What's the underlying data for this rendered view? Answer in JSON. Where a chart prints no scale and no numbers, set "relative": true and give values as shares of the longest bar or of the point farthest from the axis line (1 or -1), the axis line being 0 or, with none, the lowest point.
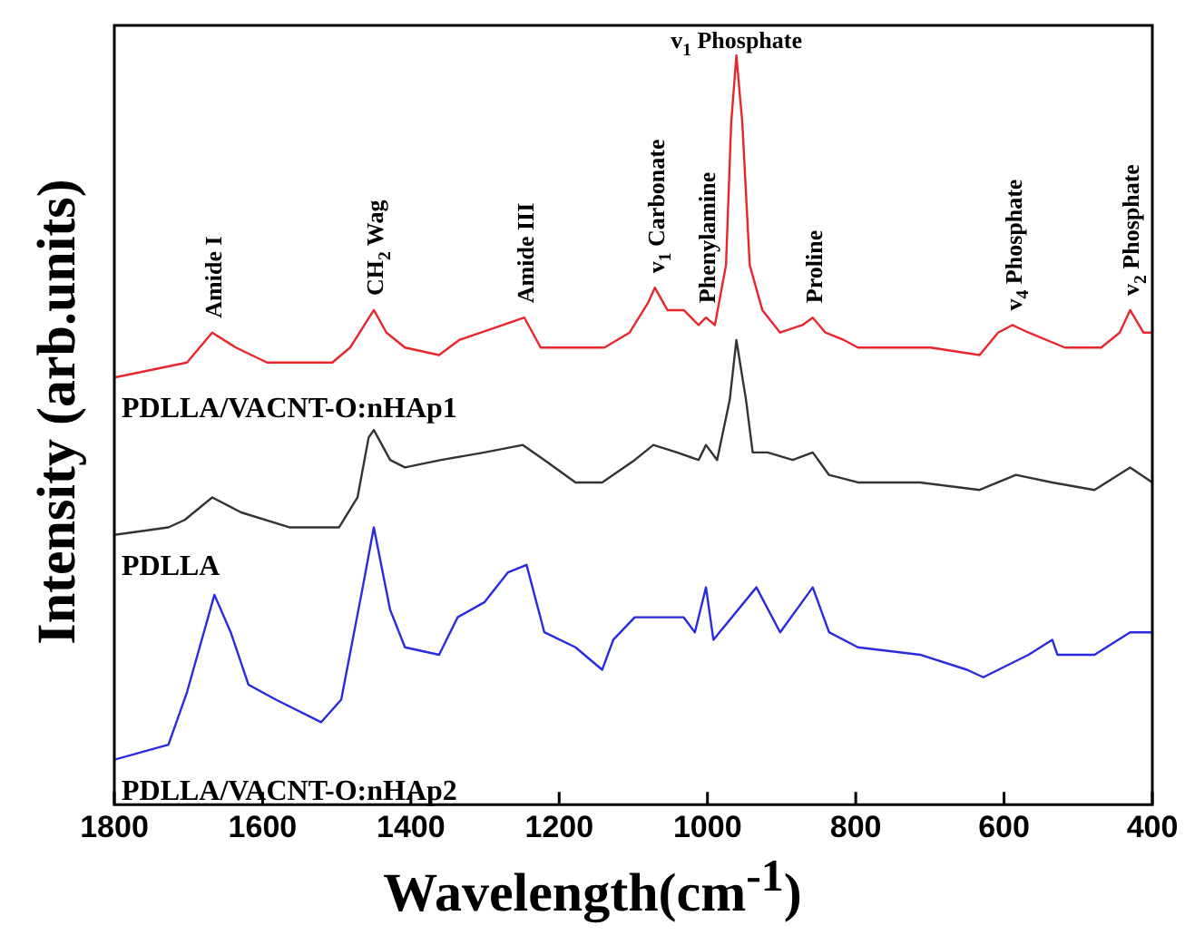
{
  "chart_data": {
    "type": "line",
    "xlabel": "Wavelength(cm$^{-1}$)",
    "ylabel": "Intensity (arb.units)",
    "relative": true,
    "xlim": [
      1800,
      400
    ],
    "xticks": [
      1800,
      1600,
      1400,
      1200,
      1000,
      800,
      600,
      400
    ],
    "marker": "none",
    "line_style": "solid",
    "annotations": [
      {
        "text": "Amide I",
        "x": 1668,
        "y": 0.63
      },
      {
        "text": "CH$_{2}$ Wag",
        "x": 1450,
        "y": 0.66
      },
      {
        "text": "Amide III",
        "x": 1247,
        "y": 0.65
      },
      {
        "text": "v$_{1}$ Carbonate",
        "x": 1071,
        "y": 0.69
      },
      {
        "text": "Phenylamine",
        "x": 1002,
        "y": 0.65
      },
      {
        "text": "v$_{1}$ Phosphate",
        "x": 961,
        "y": 1.0
      },
      {
        "text": "Proline",
        "x": 858,
        "y": 0.65
      },
      {
        "text": "v$_{4}$ Phosphate",
        "x": 589,
        "y": 0.64
      },
      {
        "text": "v$_{2}$ Phosphate",
        "x": 430,
        "y": 0.66
      }
    ],
    "series": [
      {
        "name": "PDLLA/VACNT-O:nHAp1",
        "color": "#e8262b",
        "x": [
          1800,
          1702,
          1668,
          1636,
          1594,
          1545,
          1506,
          1482,
          1450,
          1433,
          1408,
          1362,
          1335,
          1276,
          1247,
          1225,
          1188,
          1139,
          1105,
          1080,
          1071,
          1054,
          1032,
          1012,
          1002,
          990,
          975,
          968,
          961,
          953,
          943,
          926,
          902,
          872,
          858,
          841,
          816,
          797,
          755,
          699,
          633,
          608,
          589,
          567,
          518,
          469,
          444,
          430,
          412,
          400
        ],
        "values": [
          0.57,
          0.59,
          0.63,
          0.61,
          0.59,
          0.59,
          0.59,
          0.61,
          0.66,
          0.63,
          0.61,
          0.6,
          0.62,
          0.64,
          0.65,
          0.61,
          0.61,
          0.61,
          0.63,
          0.67,
          0.69,
          0.66,
          0.66,
          0.64,
          0.65,
          0.64,
          0.72,
          0.91,
          1.0,
          0.91,
          0.72,
          0.66,
          0.63,
          0.64,
          0.65,
          0.63,
          0.62,
          0.61,
          0.61,
          0.61,
          0.6,
          0.63,
          0.64,
          0.63,
          0.61,
          0.61,
          0.63,
          0.66,
          0.63,
          0.63
        ]
      },
      {
        "name": "PDLLA",
        "color": "#333333",
        "x": [
          1800,
          1727,
          1705,
          1668,
          1629,
          1563,
          1497,
          1472,
          1457,
          1450,
          1428,
          1408,
          1359,
          1301,
          1249,
          1220,
          1178,
          1142,
          1098,
          1073,
          1041,
          1012,
          1002,
          987,
          970,
          961,
          948,
          939,
          919,
          885,
          858,
          836,
          797,
          713,
          633,
          584,
          535,
          478,
          430,
          400
        ],
        "values": [
          0.36,
          0.37,
          0.38,
          0.41,
          0.39,
          0.37,
          0.37,
          0.41,
          0.49,
          0.5,
          0.46,
          0.45,
          0.46,
          0.47,
          0.48,
          0.46,
          0.43,
          0.43,
          0.46,
          0.48,
          0.47,
          0.46,
          0.48,
          0.46,
          0.54,
          0.62,
          0.54,
          0.47,
          0.47,
          0.46,
          0.47,
          0.44,
          0.43,
          0.43,
          0.42,
          0.44,
          0.43,
          0.42,
          0.45,
          0.43
        ]
      },
      {
        "name": "PDLLA/VACNT-O:nHAp2",
        "color": "#2a2ae0",
        "x": [
          1800,
          1727,
          1702,
          1665,
          1643,
          1619,
          1582,
          1521,
          1494,
          1465,
          1450,
          1428,
          1408,
          1362,
          1337,
          1301,
          1269,
          1244,
          1220,
          1178,
          1142,
          1127,
          1098,
          1066,
          1032,
          1017,
          1002,
          992,
          934,
          902,
          858,
          836,
          797,
          713,
          650,
          628,
          567,
          535,
          528,
          478,
          430,
          400
        ],
        "values": [
          0.06,
          0.08,
          0.15,
          0.28,
          0.23,
          0.16,
          0.14,
          0.11,
          0.14,
          0.29,
          0.37,
          0.26,
          0.21,
          0.2,
          0.25,
          0.27,
          0.31,
          0.32,
          0.23,
          0.21,
          0.18,
          0.22,
          0.25,
          0.25,
          0.25,
          0.23,
          0.29,
          0.22,
          0.29,
          0.23,
          0.29,
          0.23,
          0.21,
          0.2,
          0.18,
          0.17,
          0.2,
          0.22,
          0.2,
          0.2,
          0.23,
          0.23
        ]
      }
    ]
  }
}
